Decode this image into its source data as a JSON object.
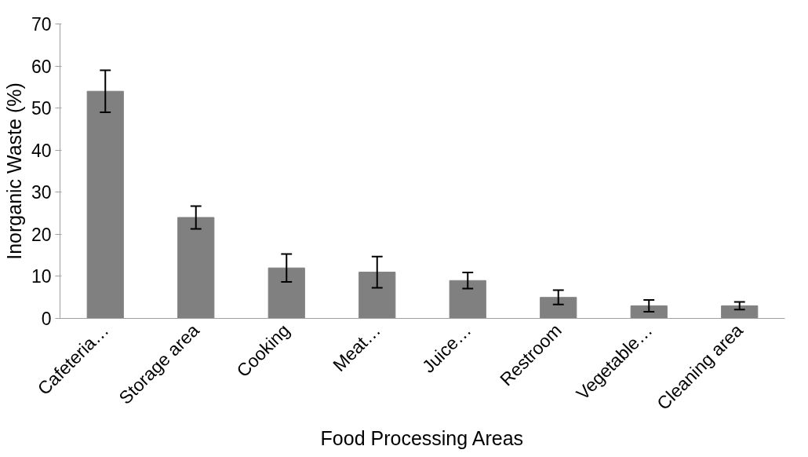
{
  "chart_data": {
    "type": "bar",
    "xlabel": "Food Processing Areas",
    "ylabel": "Inorganic Waste (%)",
    "categories": [
      "Cafeteria…",
      "Storage area",
      "Cooking",
      "Meat…",
      "Juice…",
      "Restroom",
      "Vegetable…",
      "Cleaning area"
    ],
    "values": [
      54,
      24,
      12,
      11,
      9,
      5,
      3,
      3
    ],
    "errors": [
      5,
      2.7,
      3.3,
      3.7,
      1.9,
      1.7,
      1.4,
      0.9
    ],
    "color": "#808080",
    "ylim": [
      0,
      70
    ],
    "yticks": [
      0,
      10,
      20,
      30,
      40,
      50,
      60,
      70
    ],
    "grid": false
  }
}
